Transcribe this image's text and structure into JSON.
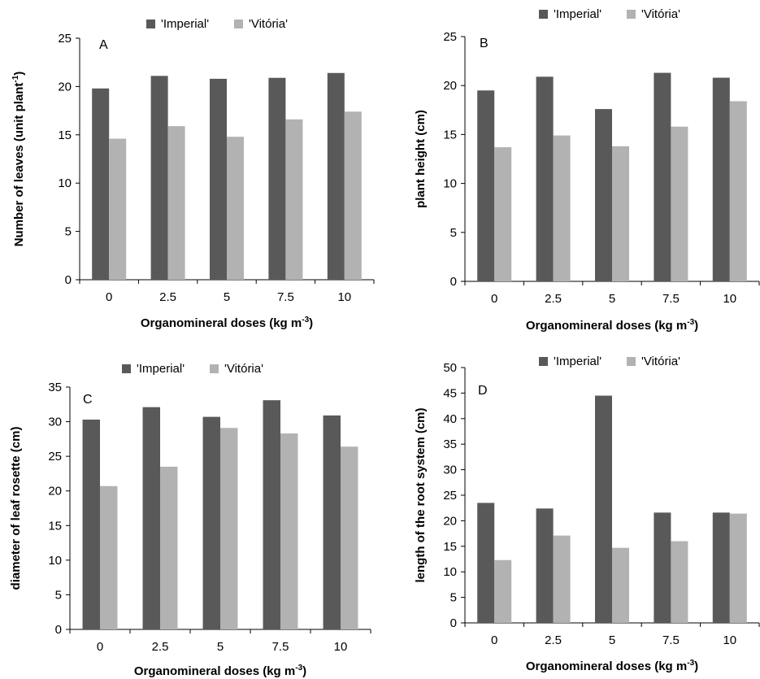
{
  "figure": {
    "legend": [
      "'Imperial'",
      "'Vitória'"
    ],
    "colors": {
      "Imperial": "#595959",
      "Vitoria": "#b2b2b2"
    }
  },
  "chart_data": [
    {
      "type": "bar",
      "panel": "A",
      "categories": [
        "0",
        "2.5",
        "5",
        "7.5",
        "10"
      ],
      "series": [
        {
          "name": "'Imperial'",
          "values": [
            19.8,
            21.1,
            20.8,
            20.9,
            21.4
          ]
        },
        {
          "name": "'Vitória'",
          "values": [
            14.6,
            15.9,
            14.8,
            16.6,
            17.4
          ]
        }
      ],
      "xlabel": "Organomineral doses (kg m-3)",
      "ylabel": "Number of leaves (unit plant-1)",
      "ylim": [
        0,
        25
      ],
      "yticks": [
        0,
        5,
        10,
        15,
        20,
        25
      ],
      "legend_position": "top"
    },
    {
      "type": "bar",
      "panel": "B",
      "categories": [
        "0",
        "2.5",
        "5",
        "7.5",
        "10"
      ],
      "series": [
        {
          "name": "'Imperial'",
          "values": [
            19.5,
            20.9,
            17.6,
            21.3,
            20.8
          ]
        },
        {
          "name": "'Vitória'",
          "values": [
            13.7,
            14.9,
            13.8,
            15.8,
            18.4
          ]
        }
      ],
      "xlabel": "Organomineral doses (kg m-3)",
      "ylabel": "plant height (cm)",
      "ylim": [
        0,
        25
      ],
      "yticks": [
        0,
        5,
        10,
        15,
        20,
        25
      ],
      "legend_position": "top"
    },
    {
      "type": "bar",
      "panel": "C",
      "categories": [
        "0",
        "2.5",
        "5",
        "7.5",
        "10"
      ],
      "series": [
        {
          "name": "'Imperial'",
          "values": [
            30.3,
            32.1,
            30.7,
            33.1,
            30.9
          ]
        },
        {
          "name": "'Vitória'",
          "values": [
            20.7,
            23.5,
            29.1,
            28.3,
            26.4
          ]
        }
      ],
      "xlabel": "Organomineral doses (kg m-3)",
      "ylabel": "diameter of leaf rosette (cm)",
      "ylim": [
        0,
        35
      ],
      "yticks": [
        0,
        5,
        10,
        15,
        20,
        25,
        30,
        35
      ],
      "legend_position": "top"
    },
    {
      "type": "bar",
      "panel": "D",
      "categories": [
        "0",
        "2.5",
        "5",
        "7.5",
        "10"
      ],
      "series": [
        {
          "name": "'Imperial'",
          "values": [
            23.5,
            22.4,
            44.5,
            21.6,
            21.6
          ]
        },
        {
          "name": "'Vitória'",
          "values": [
            12.3,
            17.1,
            14.7,
            16.0,
            21.4
          ]
        }
      ],
      "xlabel": "Organomineral doses (kg m-3)",
      "ylabel": "length of the root system (cm)",
      "ylim": [
        0,
        50
      ],
      "yticks": [
        0,
        5,
        10,
        15,
        20,
        25,
        30,
        35,
        40,
        45,
        50
      ],
      "legend_position": "top"
    }
  ]
}
